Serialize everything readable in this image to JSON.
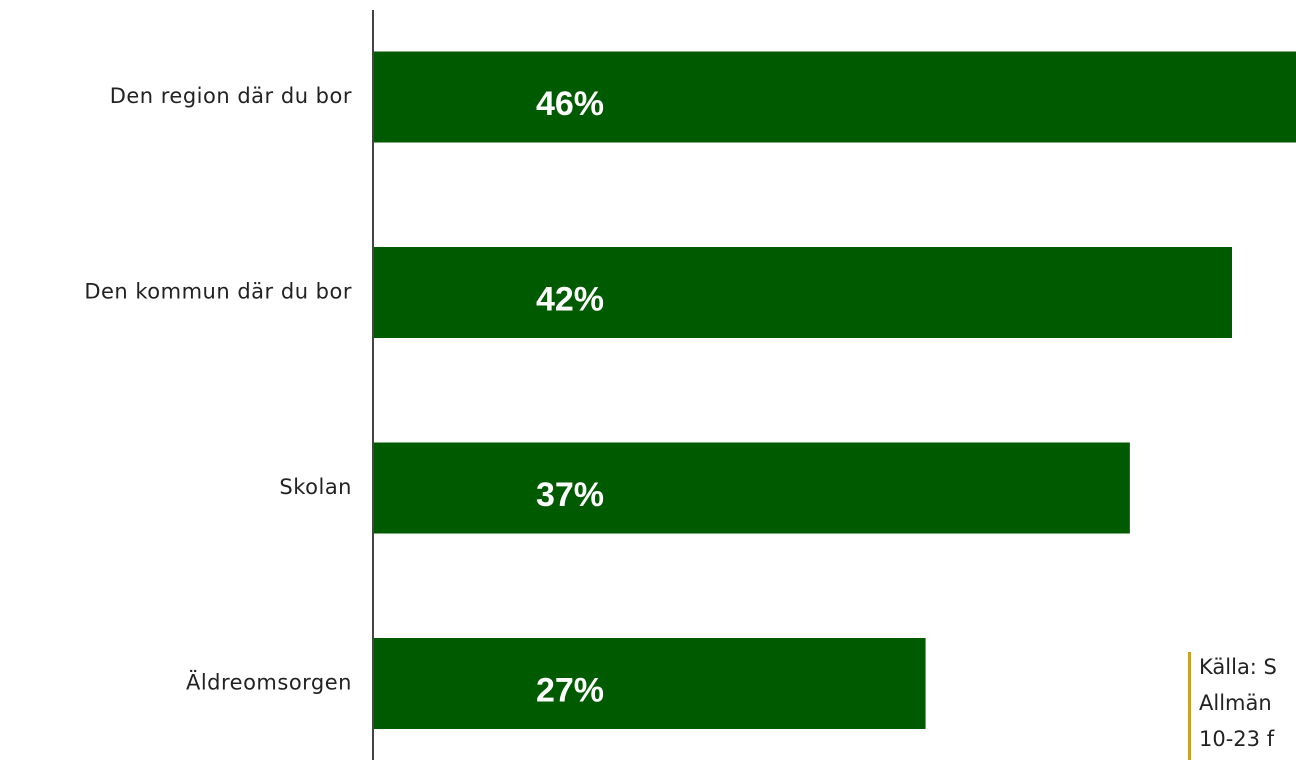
{
  "chart_data": {
    "type": "hbar",
    "categories": [
      "Den region där du bor",
      "Den kommun där du bor",
      "Skolan",
      "Äldreomsorgen"
    ],
    "values": [
      46,
      42,
      37,
      27
    ],
    "value_labels": [
      "46%",
      "42%",
      "37%",
      "27%"
    ],
    "color": "#005a00",
    "xlim": [
      0,
      50
    ],
    "annotation": [
      "Källa: S",
      "Allmän",
      "10-23 f"
    ]
  }
}
